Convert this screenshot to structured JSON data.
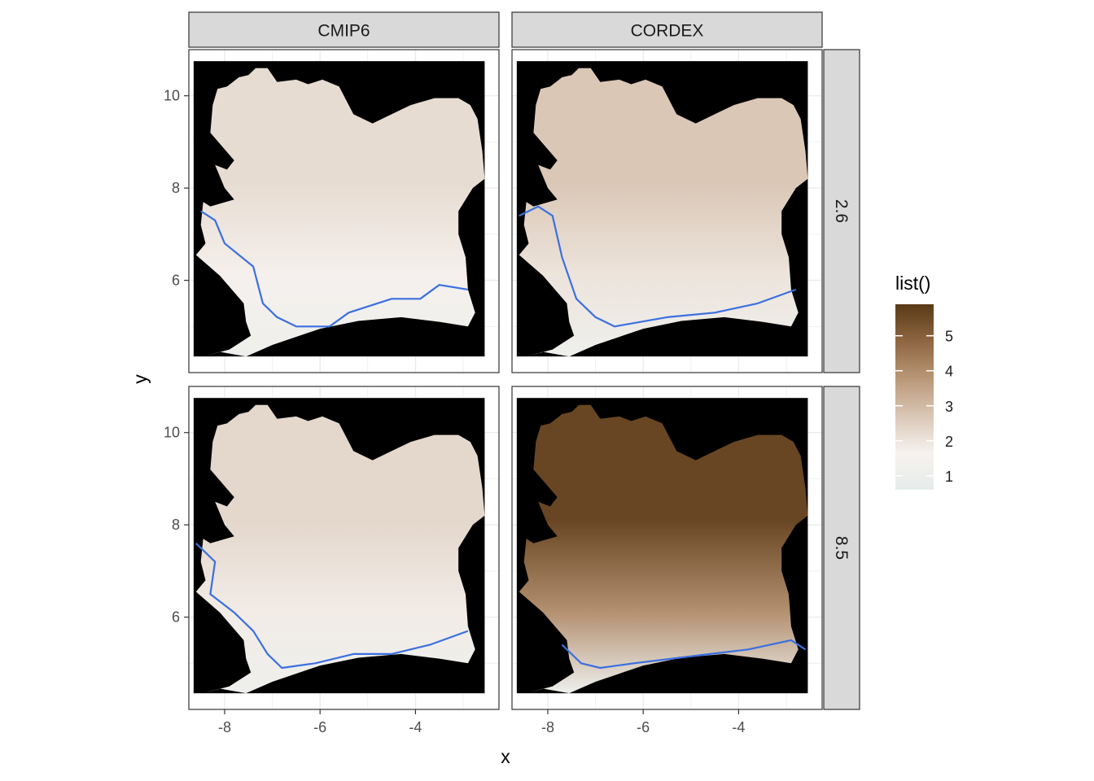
{
  "chart_data": {
    "type": "heatmap",
    "facets": {
      "columns": [
        "CMIP6",
        "CORDEX"
      ],
      "rows": [
        "2.6",
        "8.5"
      ]
    },
    "xlabel": "x",
    "ylabel": "y",
    "xlim": [
      -8.75,
      -2.25
    ],
    "ylim": [
      4.0,
      11.0
    ],
    "x_ticks": [
      -8,
      -6,
      -4
    ],
    "x_tick_labels": [
      "-8",
      "-6",
      "-4"
    ],
    "y_ticks": [
      6,
      8,
      10
    ],
    "y_tick_labels": [
      "6",
      "8",
      "10"
    ],
    "grid": true,
    "background_color": "#000000",
    "overlay_line_color": "#3b6fe0",
    "legend": {
      "title": "list()",
      "position": "right",
      "range": [
        0.6,
        5.9
      ],
      "ticks": [
        1,
        2,
        3,
        4,
        5
      ],
      "tick_labels": [
        "1",
        "2",
        "3",
        "4",
        "5"
      ],
      "colors": [
        "#e6ecea",
        "#f6f2ef",
        "#d9c6b5",
        "#b99777",
        "#8e6641",
        "#593a17"
      ]
    },
    "panels": [
      {
        "column": "CMIP6",
        "row": "2.6",
        "mean_intensity": 1.7,
        "north_intensity": 2.2,
        "south_intensity": 1.1,
        "contour": [
          [
            -8.5,
            7.5
          ],
          [
            -8.2,
            7.3
          ],
          [
            -8.0,
            6.8
          ],
          [
            -7.4,
            6.3
          ],
          [
            -7.2,
            5.5
          ],
          [
            -6.9,
            5.2
          ],
          [
            -6.5,
            5.0
          ],
          [
            -5.8,
            5.0
          ],
          [
            -5.4,
            5.3
          ],
          [
            -4.5,
            5.6
          ],
          [
            -3.9,
            5.6
          ],
          [
            -3.5,
            5.9
          ],
          [
            -2.9,
            5.8
          ]
        ]
      },
      {
        "column": "CORDEX",
        "row": "2.6",
        "mean_intensity": 2.0,
        "north_intensity": 2.7,
        "south_intensity": 1.1,
        "contour": [
          [
            -8.6,
            7.4
          ],
          [
            -8.2,
            7.6
          ],
          [
            -7.9,
            7.4
          ],
          [
            -7.7,
            6.5
          ],
          [
            -7.4,
            5.6
          ],
          [
            -7.0,
            5.2
          ],
          [
            -6.6,
            5.0
          ],
          [
            -5.5,
            5.2
          ],
          [
            -4.5,
            5.3
          ],
          [
            -3.6,
            5.5
          ],
          [
            -2.8,
            5.8
          ]
        ]
      },
      {
        "column": "CMIP6",
        "row": "8.5",
        "mean_intensity": 1.8,
        "north_intensity": 2.3,
        "south_intensity": 1.1,
        "contour": [
          [
            -8.6,
            7.6
          ],
          [
            -8.2,
            7.2
          ],
          [
            -8.3,
            6.5
          ],
          [
            -7.8,
            6.1
          ],
          [
            -7.4,
            5.7
          ],
          [
            -7.1,
            5.2
          ],
          [
            -6.8,
            4.9
          ],
          [
            -6.1,
            5.0
          ],
          [
            -5.3,
            5.2
          ],
          [
            -4.5,
            5.2
          ],
          [
            -3.7,
            5.4
          ],
          [
            -2.9,
            5.7
          ]
        ]
      },
      {
        "column": "CORDEX",
        "row": "8.5",
        "mean_intensity": 3.9,
        "north_intensity": 5.6,
        "south_intensity": 1.1,
        "contour": [
          [
            -7.7,
            5.4
          ],
          [
            -7.3,
            5.0
          ],
          [
            -6.9,
            4.9
          ],
          [
            -6.2,
            5.0
          ],
          [
            -5.4,
            5.1
          ],
          [
            -4.6,
            5.2
          ],
          [
            -3.8,
            5.3
          ],
          [
            -2.9,
            5.5
          ],
          [
            -2.6,
            5.3
          ]
        ]
      }
    ]
  }
}
